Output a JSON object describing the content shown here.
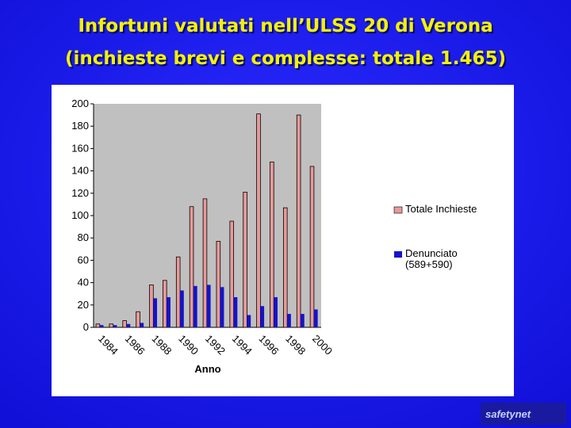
{
  "chart_data": {
    "type": "bar",
    "title": "Infortuni valutati nell’ULSS 20 di Verona",
    "subtitle": "(inchieste brevi e complesse: totale 1.465)",
    "x_label": "Anno",
    "categories": [
      "1984",
      null,
      "1986",
      null,
      "1988",
      null,
      "1990",
      null,
      "1992",
      null,
      "1994",
      null,
      "1996",
      null,
      "1998",
      null,
      "2000"
    ],
    "series": [
      {
        "name": "Totale Inchieste",
        "color": "#e89a9a",
        "values": [
          3,
          3,
          6,
          14,
          38,
          42,
          63,
          108,
          115,
          77,
          95,
          121,
          191,
          148,
          107,
          190,
          144
        ]
      },
      {
        "name": "Denunciato (589+590)",
        "color": "#1414c8",
        "values": [
          2,
          2,
          3,
          4,
          26,
          27,
          33,
          37,
          38,
          36,
          27,
          11,
          19,
          27,
          12,
          12,
          16
        ]
      }
    ],
    "ylim": [
      0,
      200
    ],
    "yticks": [
      0,
      20,
      40,
      60,
      80,
      100,
      120,
      140,
      160,
      180,
      200
    ],
    "grid": false,
    "legend": "right"
  },
  "logo": "safetynet"
}
